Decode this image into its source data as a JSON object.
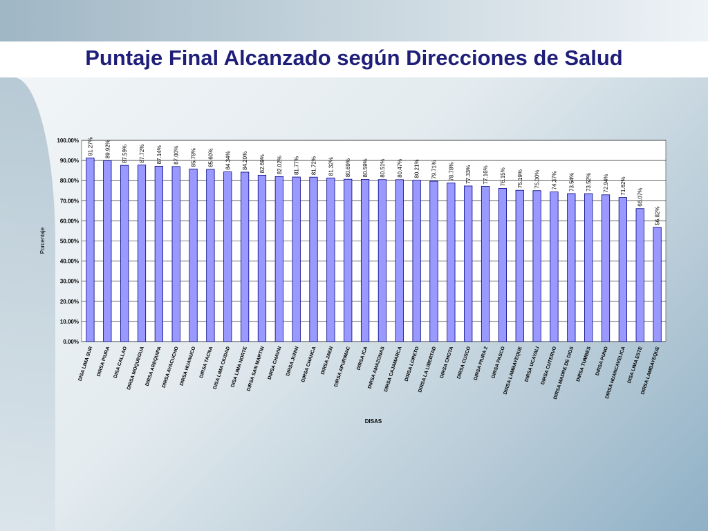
{
  "slide": {
    "title": "Puntaje Final Alcanzado según Direcciones de Salud"
  },
  "colors": {
    "bar_fill": "#9999ff",
    "bar_stroke": "#000080",
    "title": "#1f1f7a"
  },
  "chart_data": {
    "type": "bar",
    "title": "",
    "xlabel": "DISAS",
    "ylabel": "Porcentaje",
    "ylim": [
      0,
      100
    ],
    "yticks": [
      "0.00%",
      "10.00%",
      "20.00%",
      "30.00%",
      "40.00%",
      "50.00%",
      "60.00%",
      "70.00%",
      "80.00%",
      "90.00%",
      "100.00%"
    ],
    "grid": true,
    "categories": [
      "DISA LIMA SUR",
      "DIRSA PIURA",
      "DISA CALLAO",
      "DIRSA MOQUEGUA",
      "DIRSA AREQUIPA",
      "DIRSA AYACUCHO",
      "DIRSA HUANUCO",
      "DIRSA TACNA",
      "DISA LIMA CIUDAD",
      "DISA LIMA NORTE",
      "DIRSA SAN MARTIN",
      "DIRSA CHAVIN",
      "DIRSA JUNIN",
      "DIRSA CHANCA",
      "DIRSA JAEN",
      "DIRSA APURIMAC",
      "DIRSA ICA",
      "DIRSA AMAZONAS",
      "DIRSA CAJAMARCA",
      "DIRSA LORETO",
      "DIRSA LA LIBERTAD",
      "DIRSA CHOTA",
      "DIRSA CUSCO",
      "DIRSA PIURA 2",
      "DIRSA PASCO",
      "DIRSA LAMBAYEQUE",
      "DIRSA UCAYALI",
      "DIRSA CUTERVO",
      "DIRSA MADRE DE DIOS",
      "DIRSA TUMBES",
      "DIRSA PUNO",
      "DIRSA HUANCAVELICA",
      "DISA LIMA ESTE",
      "DIRSA LAMBAYEQUE"
    ],
    "values": [
      91.27,
      89.92,
      87.59,
      87.72,
      87.14,
      87.0,
      85.78,
      85.6,
      84.34,
      84.2,
      82.69,
      82.02,
      81.77,
      81.72,
      81.32,
      80.69,
      80.59,
      80.51,
      80.47,
      80.21,
      79.71,
      78.78,
      77.33,
      77.16,
      76.15,
      75.19,
      75.0,
      74.37,
      73.54,
      73.52,
      72.94,
      71.62,
      66.07,
      56.82
    ],
    "value_labels": [
      "91.27%",
      "89.92%",
      "87.59%",
      "87.72%",
      "87.14%",
      "87.00%",
      "85.78%",
      "85.60%",
      "84.34%",
      "84.20%",
      "82.69%",
      "82.02%",
      "81.77%",
      "81.72%",
      "81.32%",
      "80.69%",
      "80.59%",
      "80.51%",
      "80.47%",
      "80.21%",
      "79.71%",
      "78.78%",
      "77.33%",
      "77.16%",
      "76.15%",
      "75.19%",
      "75.00%",
      "74.37%",
      "73.54%",
      "73.52%",
      "72.94%",
      "71.62%",
      "66.07%",
      "56.82%"
    ]
  }
}
